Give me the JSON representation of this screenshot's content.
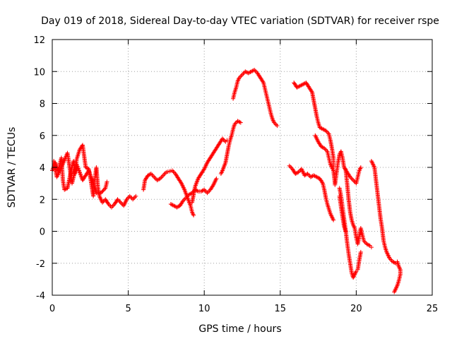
{
  "chart_data": {
    "type": "scatter",
    "title": "Day 019 of 2018, Sidereal Day-to-day VTEC variation (SDTVAR) for receiver rspe",
    "xlabel": "GPS time / hours",
    "ylabel": "SDTVAR / TECUs",
    "xlim": [
      0,
      25
    ],
    "ylim": [
      -4,
      12
    ],
    "x_ticks": [
      0,
      5,
      10,
      15,
      20,
      25
    ],
    "y_ticks": [
      -4,
      -2,
      0,
      2,
      4,
      6,
      8,
      10,
      12
    ],
    "grid": true,
    "marker": "+",
    "color": "#ff0000",
    "segments": [
      [
        [
          0.0,
          3.8
        ],
        [
          0.2,
          4.3
        ],
        [
          0.4,
          3.8
        ],
        [
          0.6,
          4.6
        ],
        [
          0.7,
          3.2
        ],
        [
          0.8,
          2.6
        ],
        [
          1.0,
          2.7
        ],
        [
          1.2,
          3.6
        ],
        [
          1.4,
          4.4
        ],
        [
          1.5,
          3.6
        ],
        [
          1.6,
          4.5
        ],
        [
          1.8,
          5.1
        ],
        [
          2.0,
          5.4
        ],
        [
          2.2,
          4.0
        ],
        [
          2.4,
          3.9
        ],
        [
          2.5,
          3.4
        ],
        [
          2.7,
          2.2
        ],
        [
          2.8,
          3.3
        ],
        [
          2.9,
          4.0
        ],
        [
          3.0,
          2.8
        ],
        [
          3.1,
          2.2
        ],
        [
          3.3,
          1.8
        ],
        [
          3.5,
          2.0
        ],
        [
          3.7,
          1.7
        ],
        [
          3.9,
          1.5
        ],
        [
          4.1,
          1.7
        ],
        [
          4.3,
          2.0
        ],
        [
          4.5,
          1.8
        ],
        [
          4.7,
          1.6
        ],
        [
          4.9,
          2.0
        ],
        [
          5.1,
          2.2
        ],
        [
          5.3,
          2.0
        ],
        [
          5.5,
          2.2
        ]
      ],
      [
        [
          0.1,
          4.4
        ],
        [
          0.3,
          3.4
        ],
        [
          0.6,
          4.0
        ],
        [
          1.0,
          4.9
        ],
        [
          1.3,
          3.0
        ],
        [
          1.6,
          4.2
        ],
        [
          2.0,
          3.2
        ],
        [
          2.4,
          3.8
        ],
        [
          2.7,
          3.0
        ],
        [
          2.9,
          2.4
        ],
        [
          3.2,
          2.4
        ],
        [
          3.5,
          2.7
        ],
        [
          3.6,
          3.1
        ]
      ],
      [
        [
          6.0,
          2.6
        ],
        [
          6.1,
          3.2
        ],
        [
          6.3,
          3.5
        ],
        [
          6.5,
          3.6
        ],
        [
          6.7,
          3.4
        ],
        [
          6.9,
          3.2
        ],
        [
          7.1,
          3.3
        ],
        [
          7.3,
          3.5
        ],
        [
          7.5,
          3.7
        ],
        [
          7.7,
          3.75
        ],
        [
          7.9,
          3.8
        ],
        [
          8.1,
          3.6
        ],
        [
          8.3,
          3.3
        ],
        [
          8.5,
          3.0
        ],
        [
          8.7,
          2.6
        ],
        [
          8.9,
          2.1
        ],
        [
          9.1,
          1.6
        ],
        [
          9.2,
          1.2
        ],
        [
          9.3,
          1.0
        ]
      ],
      [
        [
          7.8,
          1.7
        ],
        [
          8.0,
          1.6
        ],
        [
          8.2,
          1.5
        ],
        [
          8.4,
          1.6
        ],
        [
          8.6,
          1.9
        ],
        [
          8.8,
          2.1
        ],
        [
          9.0,
          2.3
        ],
        [
          9.2,
          2.4
        ],
        [
          9.4,
          2.6
        ],
        [
          9.6,
          2.5
        ],
        [
          9.8,
          2.5
        ],
        [
          10.0,
          2.6
        ],
        [
          10.2,
          2.4
        ],
        [
          10.4,
          2.6
        ],
        [
          10.6,
          2.9
        ],
        [
          10.8,
          3.3
        ]
      ],
      [
        [
          9.2,
          1.8
        ],
        [
          9.4,
          2.8
        ],
        [
          9.6,
          3.3
        ],
        [
          9.8,
          3.6
        ],
        [
          10.0,
          3.9
        ],
        [
          10.2,
          4.3
        ],
        [
          10.4,
          4.6
        ],
        [
          10.6,
          4.9
        ],
        [
          10.8,
          5.2
        ],
        [
          11.0,
          5.5
        ],
        [
          11.2,
          5.8
        ],
        [
          11.4,
          5.6
        ],
        [
          11.5,
          5.7
        ]
      ],
      [
        [
          11.1,
          3.6
        ],
        [
          11.2,
          3.8
        ],
        [
          11.4,
          4.3
        ],
        [
          11.5,
          4.8
        ],
        [
          11.6,
          5.3
        ],
        [
          11.7,
          5.7
        ],
        [
          11.8,
          6.0
        ],
        [
          11.9,
          6.4
        ],
        [
          12.0,
          6.7
        ],
        [
          12.2,
          6.9
        ],
        [
          12.4,
          6.8
        ]
      ],
      [
        [
          11.9,
          8.3
        ],
        [
          12.0,
          8.7
        ],
        [
          12.1,
          9.0
        ],
        [
          12.2,
          9.4
        ],
        [
          12.3,
          9.6
        ],
        [
          12.5,
          9.8
        ],
        [
          12.7,
          10.0
        ],
        [
          12.9,
          9.9
        ],
        [
          13.1,
          10.0
        ],
        [
          13.3,
          10.1
        ],
        [
          13.5,
          9.9
        ],
        [
          13.7,
          9.6
        ],
        [
          13.9,
          9.3
        ],
        [
          14.0,
          8.9
        ],
        [
          14.1,
          8.5
        ],
        [
          14.2,
          8.1
        ],
        [
          14.3,
          7.7
        ],
        [
          14.4,
          7.3
        ],
        [
          14.5,
          7.0
        ],
        [
          14.6,
          6.8
        ],
        [
          14.8,
          6.6
        ]
      ],
      [
        [
          15.6,
          4.1
        ],
        [
          15.8,
          3.9
        ],
        [
          16.0,
          3.6
        ],
        [
          16.2,
          3.7
        ],
        [
          16.4,
          3.9
        ],
        [
          16.6,
          3.5
        ],
        [
          16.8,
          3.6
        ],
        [
          17.0,
          3.4
        ],
        [
          17.2,
          3.5
        ],
        [
          17.4,
          3.4
        ],
        [
          17.6,
          3.3
        ],
        [
          17.8,
          3.0
        ],
        [
          17.9,
          2.6
        ],
        [
          18.0,
          2.1
        ],
        [
          18.1,
          1.7
        ],
        [
          18.2,
          1.4
        ],
        [
          18.3,
          1.1
        ],
        [
          18.4,
          0.9
        ],
        [
          18.5,
          0.7
        ]
      ],
      [
        [
          15.9,
          9.3
        ],
        [
          16.1,
          9.0
        ],
        [
          16.3,
          9.1
        ],
        [
          16.5,
          9.2
        ],
        [
          16.7,
          9.3
        ],
        [
          16.9,
          9.0
        ],
        [
          17.1,
          8.7
        ],
        [
          17.2,
          8.2
        ],
        [
          17.3,
          7.7
        ],
        [
          17.4,
          7.2
        ],
        [
          17.5,
          6.8
        ],
        [
          17.6,
          6.5
        ],
        [
          17.8,
          6.4
        ],
        [
          18.0,
          6.3
        ],
        [
          18.2,
          6.1
        ],
        [
          18.3,
          5.7
        ],
        [
          18.4,
          5.2
        ],
        [
          18.5,
          4.6
        ],
        [
          18.5,
          4.0
        ]
      ],
      [
        [
          17.3,
          6.0
        ],
        [
          17.5,
          5.6
        ],
        [
          17.7,
          5.3
        ],
        [
          17.9,
          5.2
        ],
        [
          18.1,
          5.0
        ],
        [
          18.2,
          4.6
        ],
        [
          18.3,
          4.2
        ],
        [
          18.5,
          3.8
        ],
        [
          18.6,
          3.0
        ]
      ],
      [
        [
          18.6,
          2.9
        ],
        [
          18.7,
          3.6
        ],
        [
          18.8,
          4.3
        ],
        [
          18.9,
          4.8
        ],
        [
          19.0,
          5.0
        ],
        [
          19.1,
          4.6
        ],
        [
          19.2,
          4.0
        ],
        [
          19.4,
          3.7
        ],
        [
          19.6,
          3.4
        ],
        [
          19.8,
          3.2
        ],
        [
          20.0,
          3.0
        ],
        [
          20.1,
          3.4
        ],
        [
          20.2,
          3.8
        ],
        [
          20.3,
          4.0
        ]
      ],
      [
        [
          18.9,
          2.7
        ],
        [
          19.0,
          2.2
        ],
        [
          19.1,
          1.5
        ],
        [
          19.2,
          0.8
        ],
        [
          19.3,
          0.1
        ],
        [
          19.4,
          -0.7
        ],
        [
          19.5,
          -1.4
        ],
        [
          19.6,
          -2.0
        ],
        [
          19.7,
          -2.6
        ],
        [
          19.8,
          -2.9
        ],
        [
          19.9,
          -2.7
        ],
        [
          20.0,
          -2.5
        ],
        [
          20.1,
          -2.4
        ],
        [
          20.2,
          -1.8
        ],
        [
          20.3,
          -1.3
        ]
      ],
      [
        [
          18.9,
          2.2
        ],
        [
          19.0,
          1.5
        ],
        [
          19.1,
          0.9
        ],
        [
          19.2,
          0.3
        ],
        [
          19.3,
          0.0
        ]
      ],
      [
        [
          19.3,
          3.9
        ],
        [
          19.4,
          3.0
        ],
        [
          19.5,
          2.0
        ],
        [
          19.6,
          1.2
        ],
        [
          19.7,
          0.7
        ],
        [
          19.8,
          0.4
        ],
        [
          19.9,
          0.2
        ],
        [
          20.0,
          -0.4
        ],
        [
          20.1,
          -0.8
        ],
        [
          20.2,
          -0.3
        ],
        [
          20.3,
          0.2
        ],
        [
          20.4,
          -0.2
        ],
        [
          20.5,
          -0.6
        ],
        [
          20.7,
          -0.8
        ],
        [
          20.9,
          -0.9
        ],
        [
          21.0,
          -1.0
        ]
      ],
      [
        [
          21.0,
          4.4
        ],
        [
          21.2,
          4.0
        ],
        [
          21.3,
          3.2
        ],
        [
          21.4,
          2.4
        ],
        [
          21.5,
          1.6
        ],
        [
          21.6,
          0.8
        ],
        [
          21.7,
          0.2
        ],
        [
          21.8,
          -0.6
        ],
        [
          21.9,
          -1.0
        ],
        [
          22.0,
          -1.3
        ],
        [
          22.1,
          -1.5
        ],
        [
          22.2,
          -1.7
        ],
        [
          22.4,
          -1.9
        ],
        [
          22.6,
          -2.0
        ],
        [
          22.7,
          -1.9
        ],
        [
          22.8,
          -2.2
        ],
        [
          22.9,
          -2.4
        ],
        [
          22.9,
          -2.7
        ],
        [
          22.8,
          -3.1
        ],
        [
          22.7,
          -3.4
        ],
        [
          22.6,
          -3.6
        ],
        [
          22.5,
          -3.8
        ]
      ]
    ]
  }
}
